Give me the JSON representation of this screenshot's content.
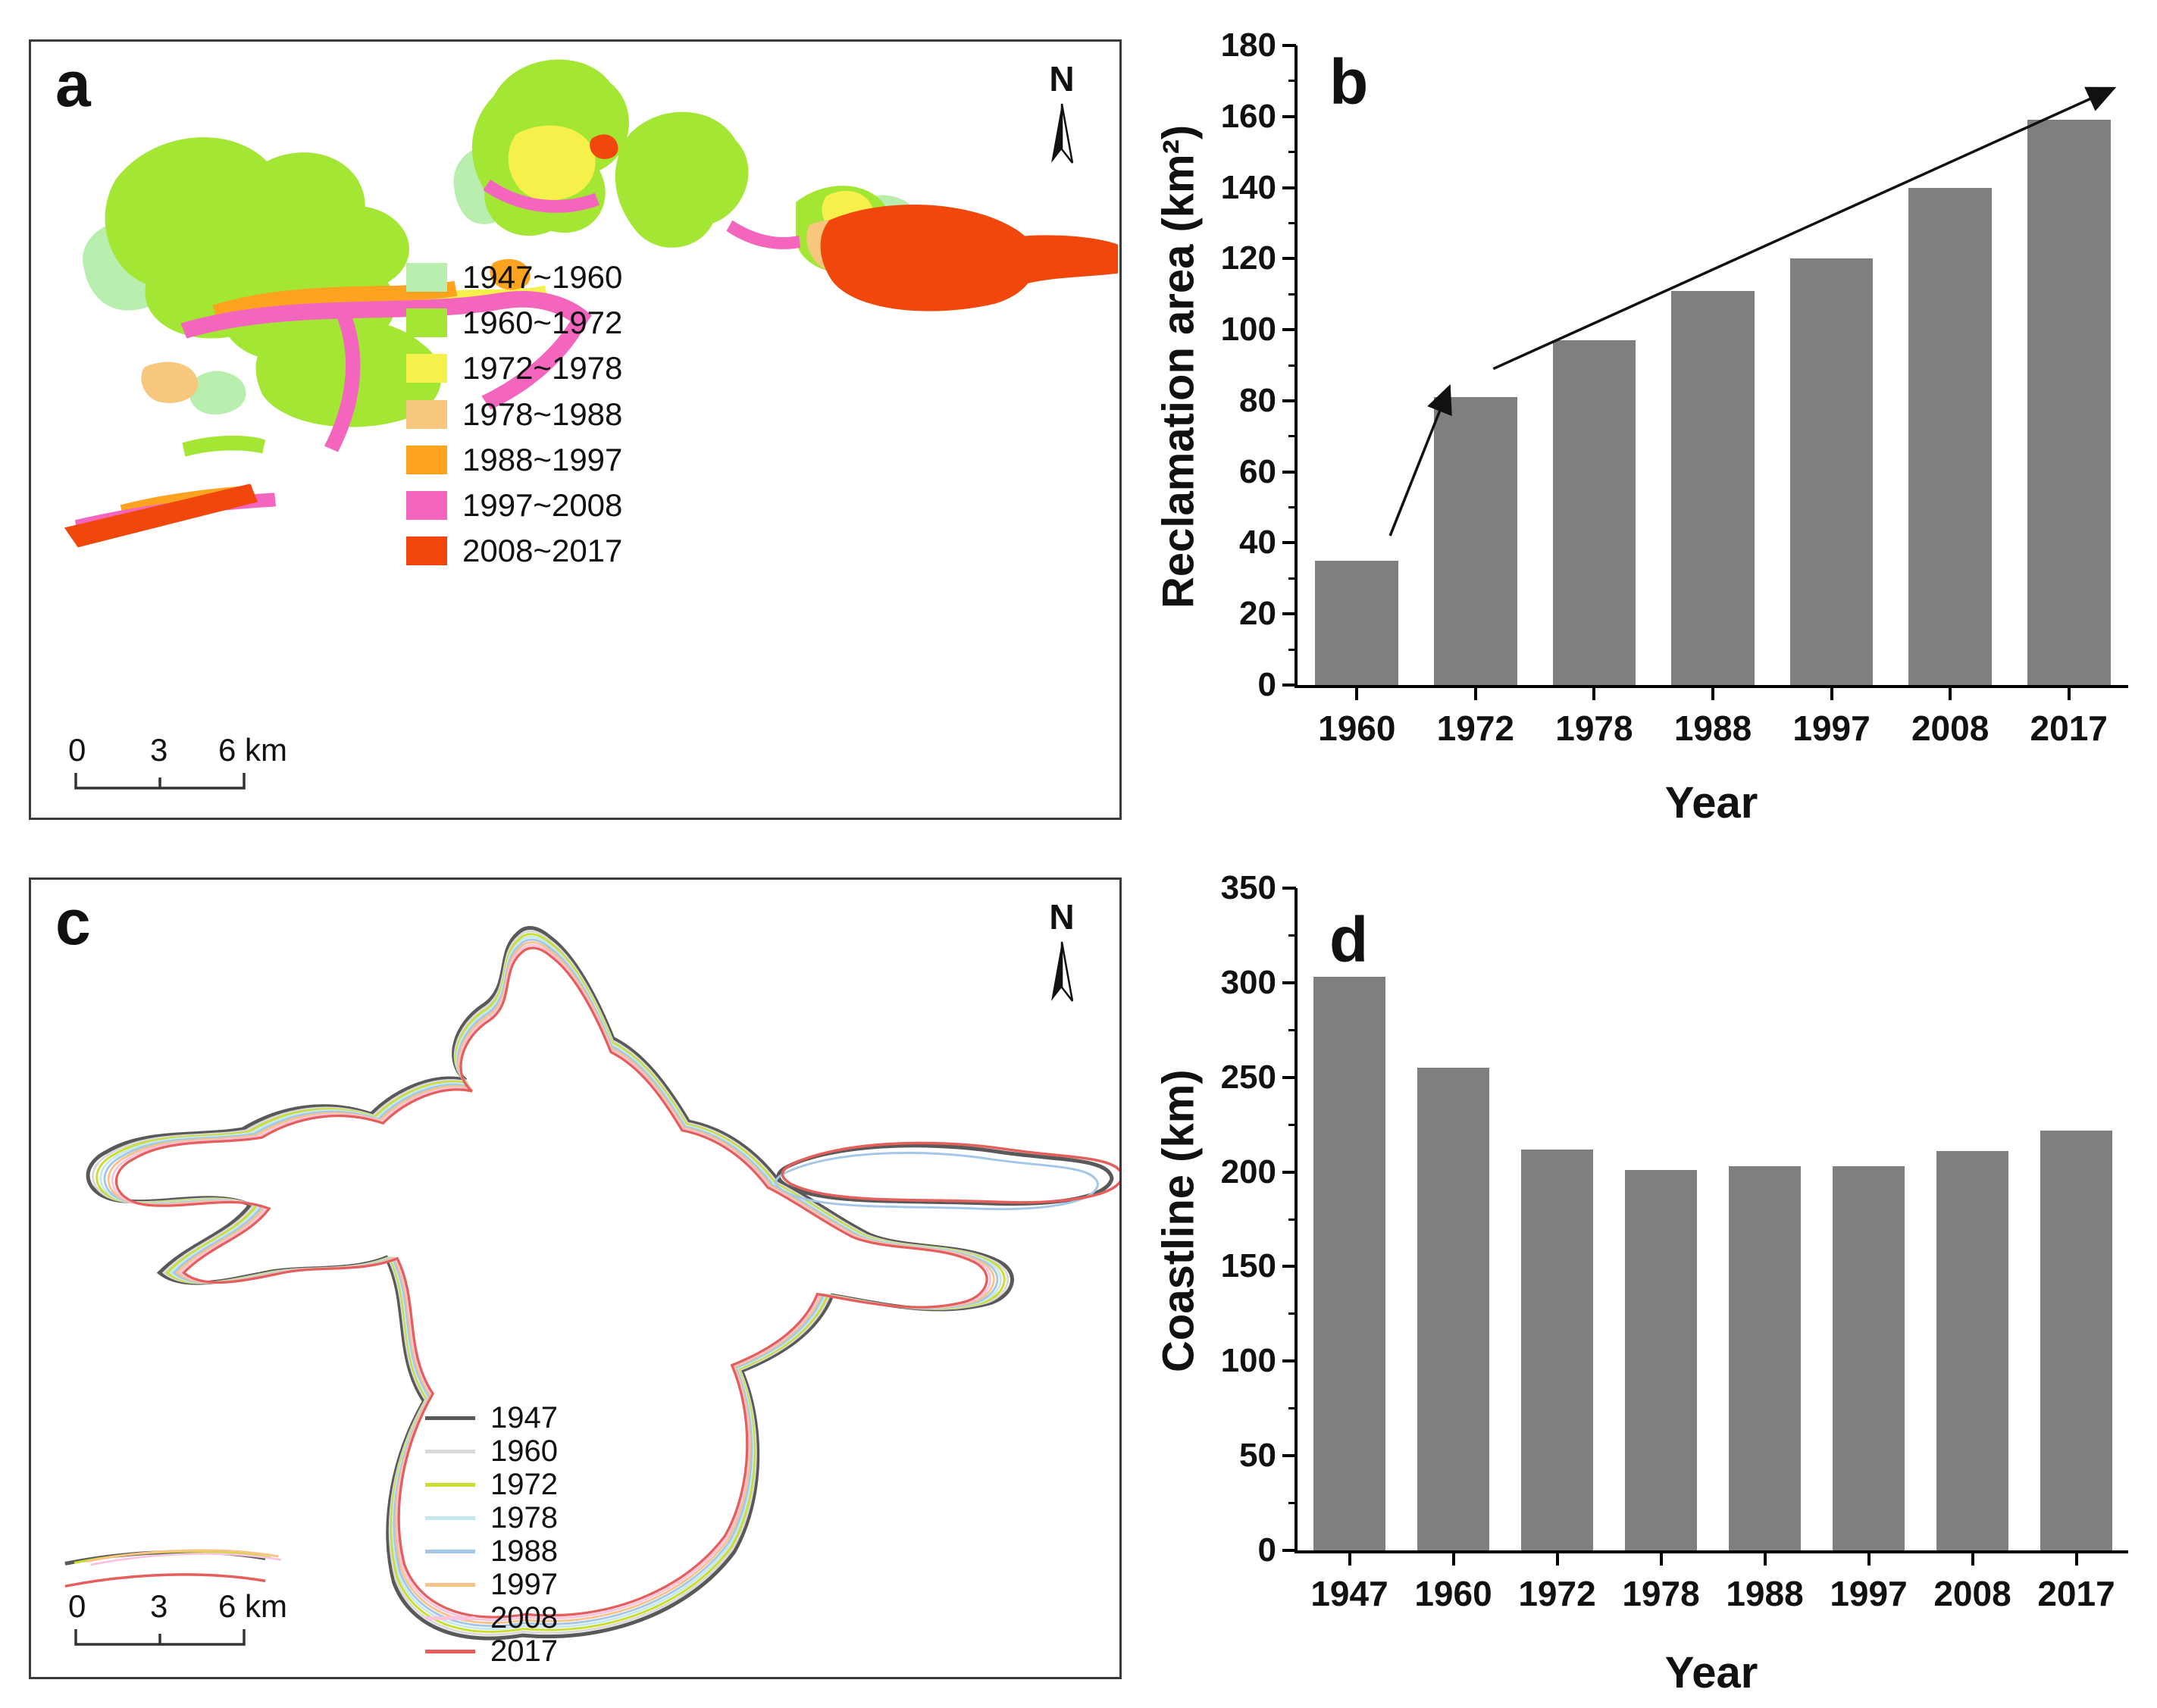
{
  "panel_a": {
    "label": "a",
    "north_label": "N",
    "scalebar": {
      "start": "0",
      "mid": "3",
      "end": "6 km"
    },
    "legend": [
      {
        "label": "1947~1960",
        "color": "#b9efae"
      },
      {
        "label": "1960~1972",
        "color": "#a3e634"
      },
      {
        "label": "1972~1978",
        "color": "#f5f04a"
      },
      {
        "label": "1978~1988",
        "color": "#f7c77d"
      },
      {
        "label": "1988~1997",
        "color": "#fda320"
      },
      {
        "label": "1997~2008",
        "color": "#f466bd"
      },
      {
        "label": "2008~2017",
        "color": "#f1470d"
      }
    ]
  },
  "panel_c": {
    "label": "c",
    "north_label": "N",
    "scalebar": {
      "start": "0",
      "mid": "3",
      "end": "6 km"
    },
    "legend": [
      {
        "label": "1947",
        "color": "#595959"
      },
      {
        "label": "1960",
        "color": "#d9d9d9"
      },
      {
        "label": "1972",
        "color": "#ccdd2e"
      },
      {
        "label": "1978",
        "color": "#c5e8ef"
      },
      {
        "label": "1988",
        "color": "#a3c7e8"
      },
      {
        "label": "1997",
        "color": "#f9c287"
      },
      {
        "label": "2008",
        "color": "#fac4e1"
      },
      {
        "label": "2017",
        "color": "#e65e5b"
      }
    ]
  },
  "chart_data": [
    {
      "type": "bar",
      "panel_label": "b",
      "categories": [
        "1960",
        "1972",
        "1978",
        "1988",
        "1997",
        "2008",
        "2017"
      ],
      "values": [
        35,
        81,
        97,
        111,
        120,
        140,
        159
      ],
      "xlabel": "Year",
      "ylabel": "Reclamation area (km²)",
      "ylim": [
        0,
        180
      ],
      "yticks": [
        0,
        20,
        40,
        60,
        80,
        100,
        120,
        140,
        160,
        180
      ],
      "bar_color": "#7f7f7f",
      "grid": false,
      "legend_position": "none",
      "annotations": [
        {
          "type": "arrow",
          "from": [
            0.28,
            42
          ],
          "to": [
            0.78,
            84
          ]
        },
        {
          "type": "arrow",
          "from": [
            1.15,
            89
          ],
          "to": [
            6.38,
            168
          ]
        }
      ]
    },
    {
      "type": "bar",
      "panel_label": "d",
      "categories": [
        "1947",
        "1960",
        "1972",
        "1978",
        "1988",
        "1997",
        "2008",
        "2017"
      ],
      "values": [
        303,
        255,
        212,
        201,
        203,
        203,
        211,
        222
      ],
      "xlabel": "Year",
      "ylabel": "Coastline (km)",
      "ylim": [
        0,
        350
      ],
      "yticks": [
        0,
        50,
        100,
        150,
        200,
        250,
        300,
        350
      ],
      "bar_color": "#7f7f7f",
      "grid": false,
      "legend_position": "none"
    }
  ]
}
